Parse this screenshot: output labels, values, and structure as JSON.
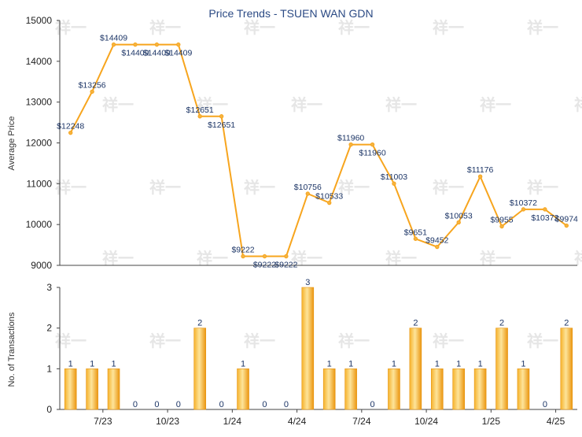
{
  "chart_data": [
    {
      "type": "line",
      "title": "Price Trends - TSUEN WAN GDN",
      "xlabel": "",
      "ylabel": "Average Price",
      "ylim": [
        9000,
        15000
      ],
      "yticks": [
        "9000",
        "10000",
        "11000",
        "12000",
        "13000",
        "14000",
        "15000"
      ],
      "grid": false,
      "series": [
        {
          "values": [
            12248,
            13256,
            14409,
            14409,
            14409,
            14409,
            12651,
            12651,
            9222,
            9222,
            9222,
            10756,
            10533,
            11960,
            11960,
            11003,
            9651,
            9452,
            10053,
            11176,
            9955,
            10372,
            10372,
            9974
          ],
          "labels": [
            "$12248",
            "$13256",
            "$14409",
            "$14409",
            "$14409",
            "$14409",
            "$12651",
            "$12651",
            "$9222",
            "$9222",
            "$9222",
            "$10756",
            "$10533",
            "$11960",
            "$11960",
            "$11003",
            "$9651",
            "$9452",
            "$10053",
            "$11176",
            "$9955",
            "$10372",
            "$10372",
            "$9974"
          ],
          "color": "#f7a51e"
        }
      ]
    },
    {
      "type": "bar",
      "title": "",
      "xlabel": "",
      "ylabel": "No. of Transactions",
      "ylim": [
        0,
        3
      ],
      "yticks": [
        "0",
        "1",
        "2",
        "3"
      ],
      "xticks": [
        {
          "label": "7/23",
          "at": 2
        },
        {
          "label": "10/23",
          "at": 5
        },
        {
          "label": "1/24",
          "at": 8
        },
        {
          "label": "4/24",
          "at": 11
        },
        {
          "label": "7/24",
          "at": 14
        },
        {
          "label": "10/24",
          "at": 17
        },
        {
          "label": "1/25",
          "at": 20
        },
        {
          "label": "4/25",
          "at": 23
        }
      ],
      "series": [
        {
          "values": [
            1,
            1,
            1,
            0,
            0,
            0,
            2,
            0,
            1,
            0,
            0,
            3,
            1,
            1,
            0,
            1,
            2,
            1,
            1,
            1,
            2,
            1,
            0,
            2
          ],
          "color": "#f2a418"
        }
      ]
    }
  ],
  "watermark": "祥一"
}
